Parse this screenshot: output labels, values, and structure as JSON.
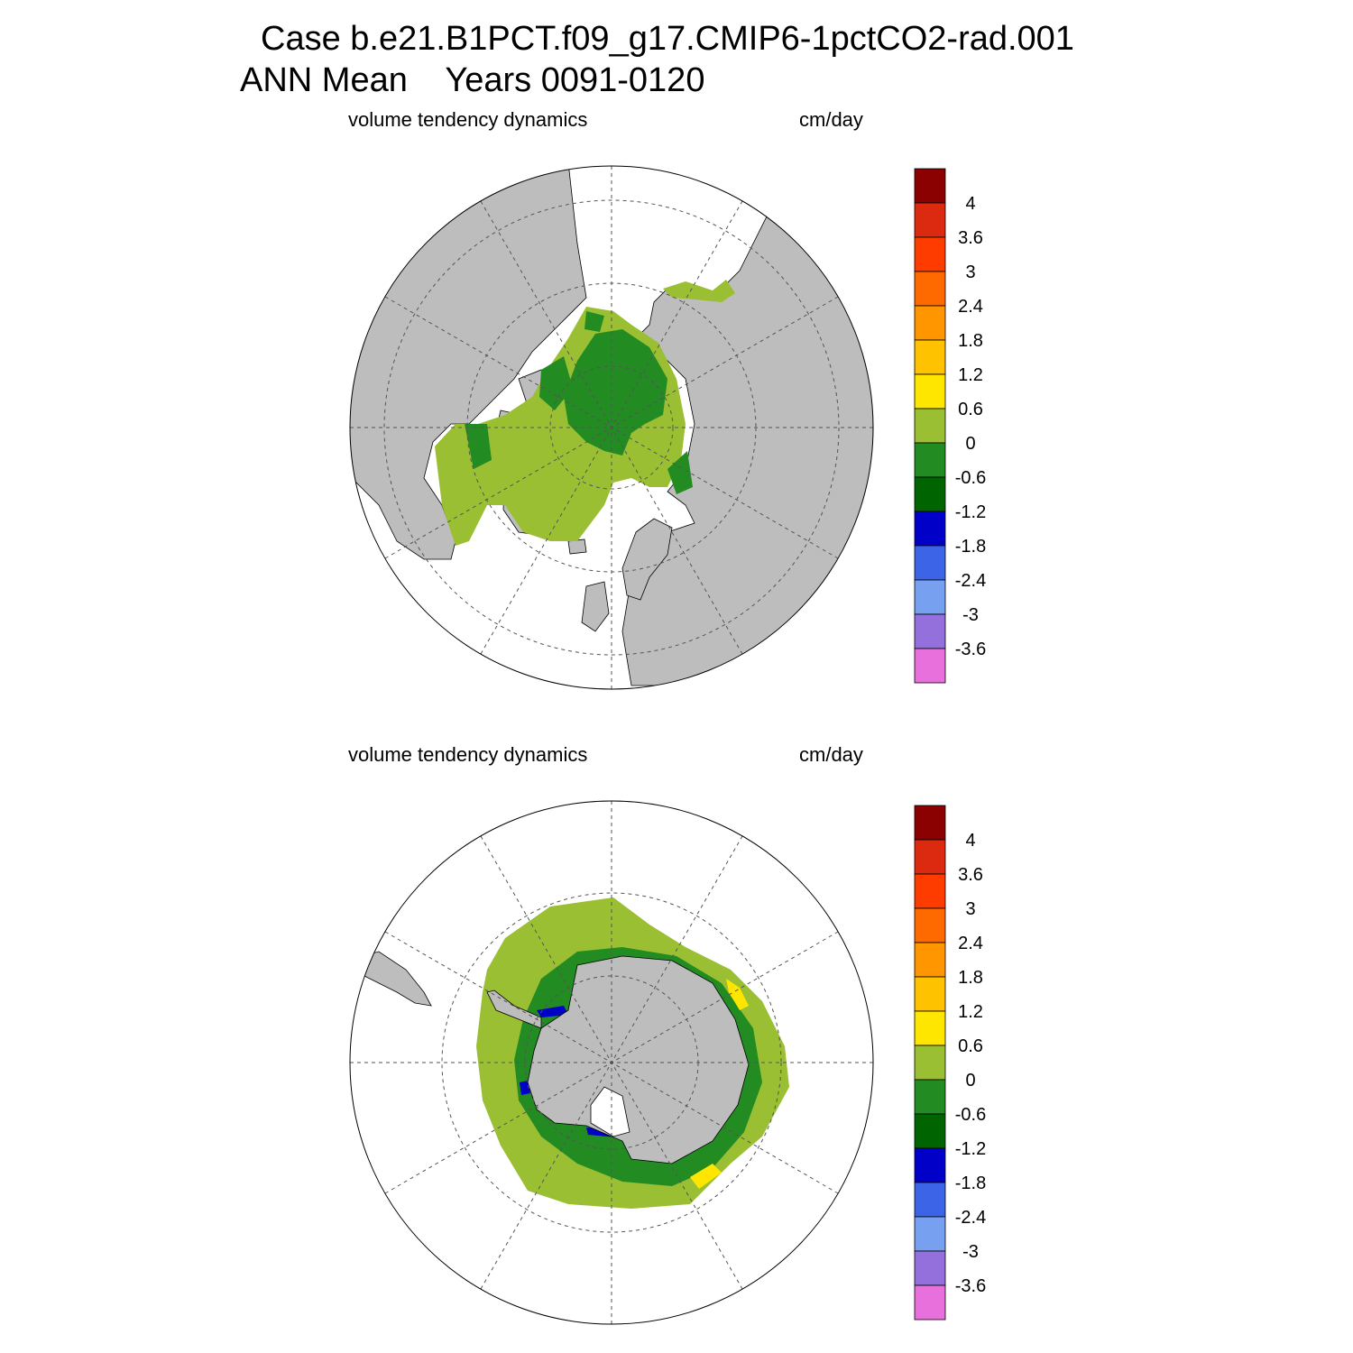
{
  "title_line1": "Case b.e21.B1PCT.f09_g17.CMIP6-1pctCO2-rad.001",
  "title_line2": "ANN Mean    Years 0091-0120",
  "colors": {
    "land": "#bdbdbd",
    "ocean_no_ice": "#ffffff",
    "grid": "#555555"
  },
  "panels": [
    {
      "id": "north",
      "hemisphere": "Northern Hemisphere (polar stereographic)",
      "label_left": "volume tendency dynamics",
      "label_right": "cm/day"
    },
    {
      "id": "south",
      "hemisphere": "Southern Hemisphere (polar stereographic)",
      "label_left": "volume tendency dynamics",
      "label_right": "cm/day"
    }
  ],
  "colorbar": {
    "tick_labels": [
      "4",
      "3.6",
      "3",
      "2.4",
      "1.8",
      "1.2",
      "0.6",
      "0",
      "-0.6",
      "-1.2",
      "-1.8",
      "-2.4",
      "-3",
      "-3.6"
    ],
    "colors": [
      "#8b0000",
      "#dc2a10",
      "#ff3c00",
      "#ff6a00",
      "#ff9600",
      "#ffc200",
      "#ffe600",
      "#9abf33",
      "#228b22",
      "#006400",
      "#0000c8",
      "#3c64e6",
      "#78a0f0",
      "#9370db",
      "#e870dc"
    ]
  }
}
